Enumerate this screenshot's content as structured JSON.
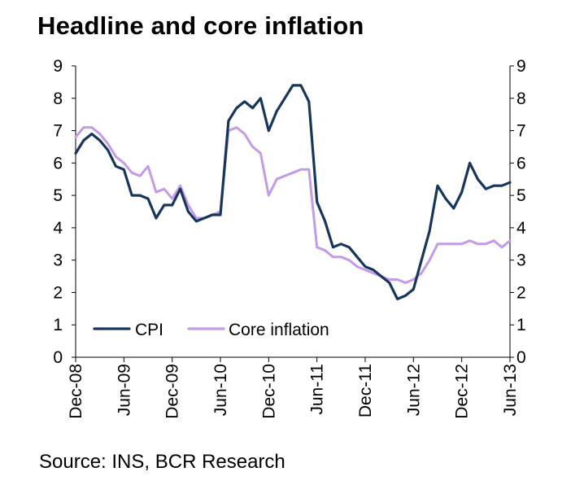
{
  "chart_data": {
    "type": "line",
    "title": "Headline and core inflation",
    "source": "Source: INS, BCR Research",
    "ylim": [
      0,
      9
    ],
    "y_ticks": [
      0,
      1,
      2,
      3,
      4,
      5,
      6,
      7,
      8,
      9
    ],
    "secondary_y_ticks": [
      0,
      1,
      2,
      3,
      4,
      5,
      6,
      7,
      8,
      9
    ],
    "x_tick_labels": [
      "Dec-08",
      "Jun-09",
      "Dec-09",
      "Jun-10",
      "Dec-10",
      "Jun-11",
      "Dec-11",
      "Jun-12",
      "Dec-12",
      "Jun-13"
    ],
    "grid": false,
    "legend_position": "bottom-left",
    "x": [
      "Dec-08",
      "Jan-09",
      "Feb-09",
      "Mar-09",
      "Apr-09",
      "May-09",
      "Jun-09",
      "Jul-09",
      "Aug-09",
      "Sep-09",
      "Oct-09",
      "Nov-09",
      "Dec-09",
      "Jan-10",
      "Feb-10",
      "Mar-10",
      "Apr-10",
      "May-10",
      "Jun-10",
      "Jul-10",
      "Aug-10",
      "Sep-10",
      "Oct-10",
      "Nov-10",
      "Dec-10",
      "Jan-11",
      "Feb-11",
      "Mar-11",
      "Apr-11",
      "May-11",
      "Jun-11",
      "Jul-11",
      "Aug-11",
      "Sep-11",
      "Oct-11",
      "Nov-11",
      "Dec-11",
      "Jan-12",
      "Feb-12",
      "Mar-12",
      "Apr-12",
      "May-12",
      "Jun-12",
      "Jul-12",
      "Aug-12",
      "Sep-12",
      "Oct-12",
      "Nov-12",
      "Dec-12",
      "Jan-13",
      "Feb-13",
      "Mar-13",
      "Apr-13",
      "May-13",
      "Jun-13"
    ],
    "series": [
      {
        "name": "CPI",
        "color": "#17365D",
        "values": [
          6.3,
          6.7,
          6.9,
          6.7,
          6.4,
          5.9,
          5.8,
          5.0,
          5.0,
          4.9,
          4.3,
          4.7,
          4.7,
          5.2,
          4.5,
          4.2,
          4.3,
          4.4,
          4.4,
          7.3,
          7.7,
          7.9,
          7.7,
          8.0,
          7.0,
          7.6,
          8.0,
          8.4,
          8.4,
          7.9,
          4.8,
          4.2,
          3.4,
          3.5,
          3.4,
          3.1,
          2.8,
          2.7,
          2.5,
          2.3,
          1.8,
          1.9,
          2.1,
          3.0,
          3.9,
          5.3,
          4.9,
          4.6,
          5.1,
          6.0,
          5.5,
          5.2,
          5.3,
          5.3,
          5.4
        ]
      },
      {
        "name": "Core inflation",
        "color": "#C39BE8",
        "values": [
          6.8,
          7.1,
          7.1,
          6.9,
          6.6,
          6.2,
          6.0,
          5.7,
          5.6,
          5.9,
          5.1,
          5.2,
          4.9,
          5.3,
          4.7,
          4.3,
          4.3,
          4.4,
          4.5,
          7.0,
          7.1,
          6.9,
          6.5,
          6.3,
          5.0,
          5.5,
          5.6,
          5.7,
          5.8,
          5.8,
          3.4,
          3.3,
          3.1,
          3.1,
          3.0,
          2.8,
          2.7,
          2.6,
          2.5,
          2.4,
          2.4,
          2.3,
          2.4,
          2.6,
          3.0,
          3.5,
          3.5,
          3.5,
          3.5,
          3.6,
          3.5,
          3.5,
          3.6,
          3.4,
          3.6
        ]
      }
    ]
  }
}
